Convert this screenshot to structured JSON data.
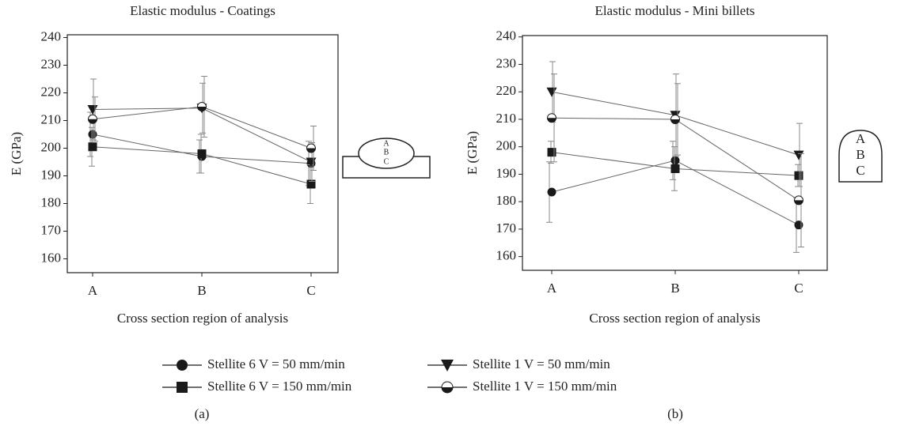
{
  "chart_data": [
    {
      "type": "line",
      "title": "Elastic modulus - Coatings",
      "x_label": "Cross section region of analysis",
      "y_label": "E (GPa)",
      "panel_label": "(a)",
      "inset_labels": [
        "A",
        "B",
        "C"
      ],
      "categories": [
        "A",
        "B",
        "C"
      ],
      "ylim": [
        155,
        241
      ],
      "yticks": [
        160,
        170,
        180,
        190,
        200,
        210,
        220,
        230,
        240
      ],
      "series": [
        {
          "name": "Stellite 6 V = 50 mm/min",
          "marker": "circle",
          "color": "#1a1a1a",
          "values": [
            205,
            197,
            194.5
          ],
          "errors": [
            8,
            6,
            8
          ]
        },
        {
          "name": "Stellite 6 V = 150 mm/min",
          "marker": "square",
          "color": "#1a1a1a",
          "values": [
            200.5,
            198,
            187
          ],
          "errors": [
            7,
            7,
            7
          ]
        },
        {
          "name": "Stellite 1 V = 50 mm/min",
          "marker": "triangle-down",
          "color": "#1a1a1a",
          "values": [
            214,
            214.5,
            195
          ],
          "errors": [
            11,
            9,
            7
          ]
        },
        {
          "name": "Stellite 1 V = 150 mm/min",
          "marker": "half-circle",
          "color": "#1a1a1a",
          "values": [
            210.5,
            215,
            200
          ],
          "errors": [
            8,
            11,
            8
          ]
        }
      ]
    },
    {
      "type": "line",
      "title": "Elastic modulus - Mini billets",
      "x_label": "Cross section region of analysis",
      "y_label": "E (GPa)",
      "panel_label": "(b)",
      "inset_labels": [
        "A",
        "B",
        "C"
      ],
      "categories": [
        "A",
        "B",
        "C"
      ],
      "ylim": [
        155,
        240.5
      ],
      "yticks": [
        160,
        170,
        180,
        190,
        200,
        210,
        220,
        230,
        240
      ],
      "series": [
        {
          "marker": "circle",
          "color": "#1a1a1a",
          "values": [
            183.5,
            195,
            171.5
          ],
          "errors": [
            11,
            7,
            10
          ]
        },
        {
          "marker": "square",
          "color": "#1a1a1a",
          "values": [
            198,
            192,
            189.5
          ],
          "errors": [
            4,
            8,
            4
          ]
        },
        {
          "marker": "triangle-down",
          "color": "#1a1a1a",
          "values": [
            220,
            211.5,
            197
          ],
          "errors": [
            11,
            15,
            11.5
          ]
        },
        {
          "marker": "half-circle",
          "color": "#1a1a1a",
          "values": [
            210.5,
            210,
            180.5
          ],
          "errors": [
            16,
            13,
            17
          ]
        }
      ]
    }
  ]
}
